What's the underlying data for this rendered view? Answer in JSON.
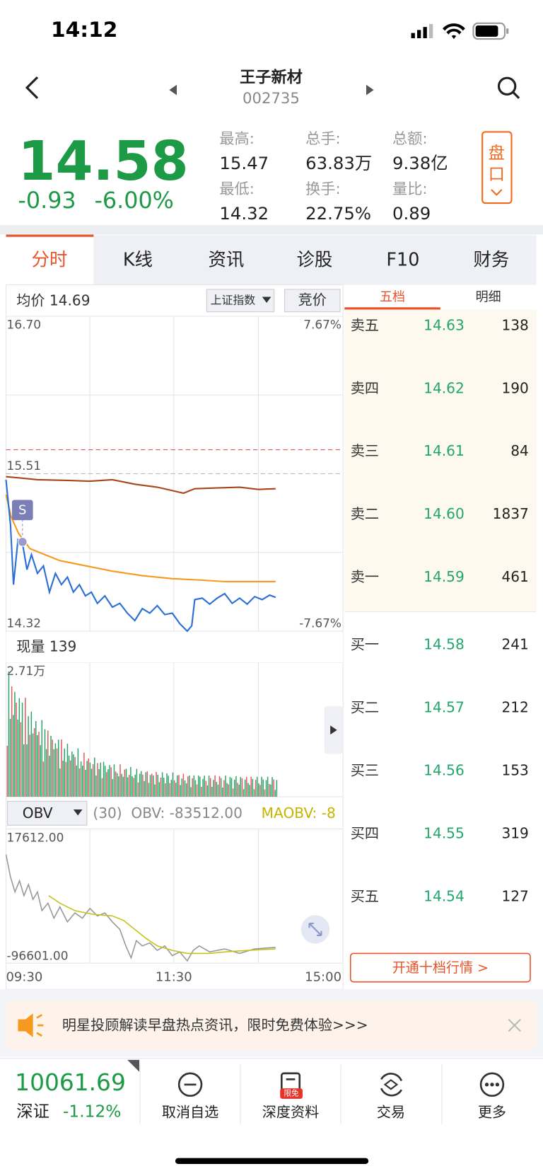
{
  "status": {
    "time": "14:12"
  },
  "header": {
    "name": "王子新材",
    "code": "002735"
  },
  "quote": {
    "price": "14.58",
    "change": "-0.93",
    "change_pct": "-6.00%",
    "stats": [
      {
        "label": "最高:",
        "value": "15.47"
      },
      {
        "label": "总手:",
        "value": "63.83万"
      },
      {
        "label": "总额:",
        "value": "9.38亿"
      },
      {
        "label": "最低:",
        "value": "14.32"
      },
      {
        "label": "换手:",
        "value": "22.75%"
      },
      {
        "label": "量比:",
        "value": "0.89"
      }
    ],
    "button": "盘口"
  },
  "tabs": [
    "分时",
    "K线",
    "资讯",
    "诊股",
    "F10",
    "财务"
  ],
  "chart": {
    "avg_label": "均价 14.69",
    "index_select": "上证指数",
    "auction": "竞价",
    "y_top": "16.70",
    "y_ref": "15.51",
    "y_bottom": "14.32",
    "pct_top": "7.67%",
    "pct_bottom": "-7.67%",
    "marker": "S",
    "volume_label": "现量 139",
    "volume_max": "2.71万",
    "indicator": "OBV",
    "params": "(30)",
    "obv": "OBV: -83512.00",
    "maobv": "MAOBV: -8",
    "obv_top": "17612.00",
    "obv_bottom": "-96601.00",
    "times": [
      "09:30",
      "11:30",
      "15:00"
    ]
  },
  "orderbook": {
    "tabs": [
      "五档",
      "明细"
    ],
    "asks": [
      {
        "label": "卖五",
        "price": "14.63",
        "volume": "138"
      },
      {
        "label": "卖四",
        "price": "14.62",
        "volume": "190"
      },
      {
        "label": "卖三",
        "price": "14.61",
        "volume": "84"
      },
      {
        "label": "卖二",
        "price": "14.60",
        "volume": "1837"
      },
      {
        "label": "卖一",
        "price": "14.59",
        "volume": "461"
      }
    ],
    "bids": [
      {
        "label": "买一",
        "price": "14.58",
        "volume": "241"
      },
      {
        "label": "买二",
        "price": "14.57",
        "volume": "212"
      },
      {
        "label": "买三",
        "price": "14.56",
        "volume": "153"
      },
      {
        "label": "买四",
        "price": "14.55",
        "volume": "319"
      },
      {
        "label": "买五",
        "price": "14.54",
        "volume": "127"
      }
    ],
    "button": "开通十档行情 >"
  },
  "banner": {
    "text": "明星投顾解读早盘热点资讯，限时免费体验>>>"
  },
  "bottom": {
    "index_value": "10061.69",
    "index_name": "深证",
    "index_pct": "-1.12%",
    "badge": "限免",
    "actions": [
      "取消自选",
      "深度资料",
      "交易",
      "更多"
    ]
  }
}
